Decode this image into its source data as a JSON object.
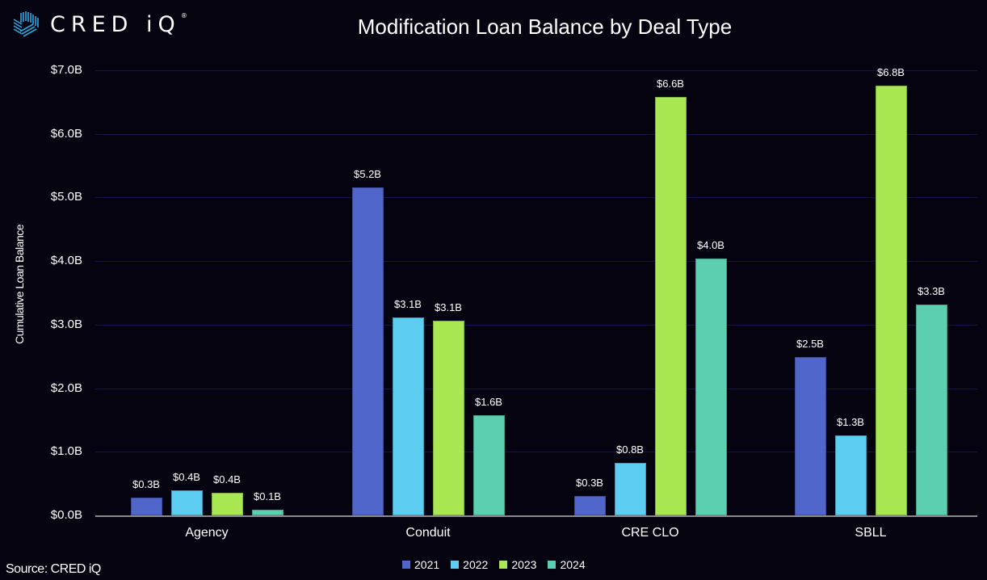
{
  "brand": {
    "name": "CRED iQ",
    "logo_text": "CRED iQ",
    "registered_mark": "®",
    "accent_color": "#29a8e0"
  },
  "header": {
    "title": "Modification Loan Balance by Deal Type"
  },
  "footer": {
    "source": "Source: CRED iQ"
  },
  "axis": {
    "ylabel": "Cumulative Loan Balance",
    "yticks": [
      "$0.0B",
      "$1.0B",
      "$2.0B",
      "$3.0B",
      "$4.0B",
      "$5.0B",
      "$6.0B",
      "$7.0B"
    ]
  },
  "legend": [
    {
      "label": "2021",
      "color": "#5166cb"
    },
    {
      "label": "2022",
      "color": "#5dcdf2"
    },
    {
      "label": "2023",
      "color": "#a9e852"
    },
    {
      "label": "2024",
      "color": "#5ccfb1"
    }
  ],
  "categories_display": [
    "Agency",
    "Conduit",
    "CRE CLO",
    "SBLL"
  ],
  "bar_labels": [
    [
      "$0.3B",
      "$0.4B",
      "$0.4B",
      "$0.1B"
    ],
    [
      "$5.2B",
      "$3.1B",
      "$3.1B",
      "$1.6B"
    ],
    [
      "$0.3B",
      "$0.8B",
      "$6.6B",
      "$4.0B"
    ],
    [
      "$2.5B",
      "$1.3B",
      "$6.8B",
      "$3.3B"
    ]
  ],
  "chart_data": {
    "type": "bar",
    "title": "Modification Loan Balance by Deal Type",
    "xlabel": "",
    "ylabel": "Cumulative Loan Balance",
    "ylim": [
      0,
      7.0
    ],
    "y_unit": "$B",
    "grid": true,
    "legend_position": "bottom",
    "categories": [
      "Agency",
      "Conduit",
      "CRE CLO",
      "SBLL"
    ],
    "series": [
      {
        "name": "2021",
        "color": "#5166cb",
        "values": [
          0.28,
          5.16,
          0.3,
          2.49
        ]
      },
      {
        "name": "2022",
        "color": "#5dcdf2",
        "values": [
          0.39,
          3.11,
          0.83,
          1.26
        ]
      },
      {
        "name": "2023",
        "color": "#a9e852",
        "values": [
          0.36,
          3.06,
          6.58,
          6.76
        ]
      },
      {
        "name": "2024",
        "color": "#5ccfb1",
        "values": [
          0.09,
          1.58,
          4.04,
          3.32
        ]
      }
    ],
    "data_labels": [
      [
        "$0.3B",
        "$5.2B",
        "$0.3B",
        "$2.5B"
      ],
      [
        "$0.4B",
        "$3.1B",
        "$0.8B",
        "$1.3B"
      ],
      [
        "$0.4B",
        "$3.1B",
        "$6.6B",
        "$6.8B"
      ],
      [
        "$0.1B",
        "$1.6B",
        "$4.0B",
        "$3.3B"
      ]
    ],
    "source": "Source: CRED iQ"
  }
}
